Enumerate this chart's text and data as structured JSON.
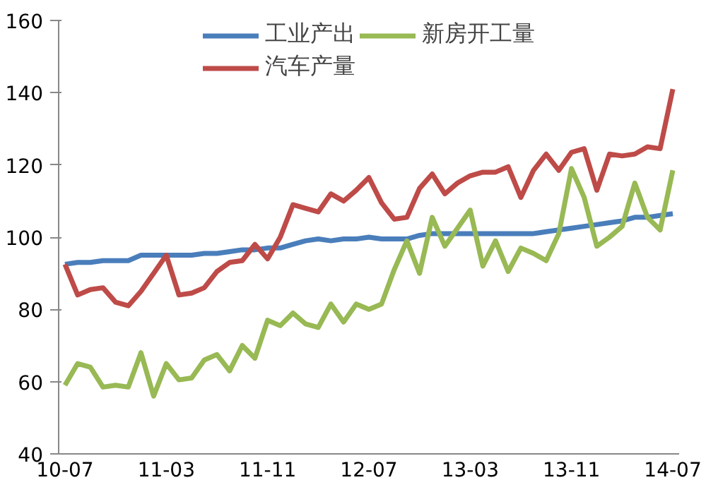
{
  "chart_data": {
    "type": "line",
    "categories": [
      "10-07",
      null,
      null,
      null,
      null,
      null,
      null,
      null,
      "11-03",
      null,
      null,
      null,
      null,
      null,
      null,
      null,
      "11-11",
      null,
      null,
      null,
      null,
      null,
      null,
      null,
      "12-07",
      null,
      null,
      null,
      null,
      null,
      null,
      null,
      "13-03",
      null,
      null,
      null,
      null,
      null,
      null,
      null,
      "13-11",
      null,
      null,
      null,
      null,
      null,
      null,
      null,
      "14-07"
    ],
    "series": [
      {
        "name": "工业产出",
        "color": "#4a7ebb",
        "values": [
          92.5,
          93,
          93,
          93.5,
          93.5,
          93.5,
          95,
          95,
          95,
          95,
          95,
          95.5,
          95.5,
          96,
          96.5,
          96.5,
          97,
          97,
          98,
          99,
          99.5,
          99,
          99.5,
          99.5,
          100,
          99.5,
          99.5,
          99.5,
          100.5,
          101,
          101,
          101,
          101,
          101,
          101,
          101,
          101,
          101,
          101.5,
          102,
          102.5,
          103,
          103.5,
          104,
          104.5,
          105.5,
          105.5,
          106,
          106.5
        ]
      },
      {
        "name": "汽车产量",
        "color": "#be4b48",
        "values": [
          92.5,
          84,
          85.5,
          86,
          82,
          81,
          85,
          90,
          95,
          84,
          84.5,
          86,
          90.5,
          93,
          93.5,
          98,
          94,
          100,
          109,
          108,
          107,
          112,
          110,
          113,
          116.5,
          109.5,
          105,
          105.5,
          113.5,
          117.5,
          112,
          115,
          117,
          118,
          118,
          119.5,
          111,
          118.5,
          123,
          118.5,
          123.5,
          124.5,
          113,
          123,
          122.5,
          123,
          125,
          124.5,
          141
        ]
      },
      {
        "name": "新房开工量",
        "color": "#98b954",
        "values": [
          59,
          65,
          64,
          58.5,
          59,
          58.5,
          68,
          56,
          65,
          60.5,
          61,
          66,
          67.5,
          63,
          70,
          66.5,
          77,
          75.5,
          79,
          76,
          75,
          81.5,
          76.5,
          81.5,
          80,
          81.5,
          91,
          99,
          90,
          105.5,
          97.5,
          102.5,
          107.5,
          92,
          99,
          90.5,
          97,
          95.5,
          93.5,
          101,
          119,
          111,
          97.5,
          100,
          103,
          115,
          105.5,
          102,
          118.5
        ]
      }
    ],
    "ylim": [
      40,
      160
    ],
    "yticks": [
      40,
      60,
      80,
      100,
      120,
      140,
      160
    ],
    "grid": false,
    "legend": "top",
    "marker": "none",
    "line_style": "solid"
  }
}
